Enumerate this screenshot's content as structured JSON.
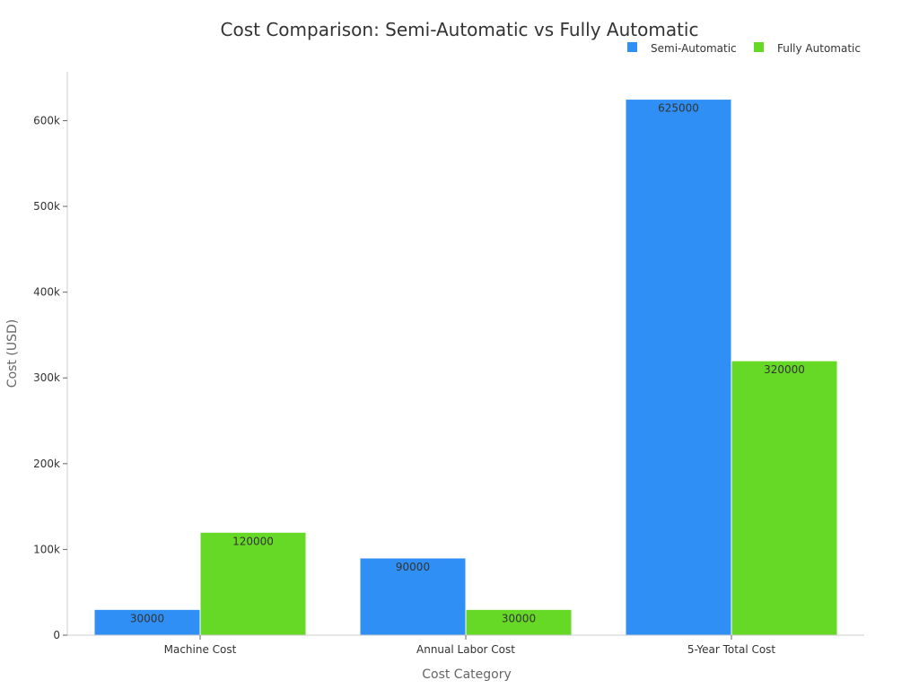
{
  "chart_data": {
    "type": "bar",
    "title": "Cost Comparison: Semi-Automatic vs Fully Automatic",
    "xlabel": "Cost Category",
    "ylabel": "Cost (USD)",
    "categories": [
      "Machine Cost",
      "Annual Labor Cost",
      "5-Year Total Cost"
    ],
    "series": [
      {
        "name": "Semi-Automatic",
        "values": [
          30000,
          90000,
          625000
        ],
        "color": "#2f8ff5"
      },
      {
        "name": "Fully Automatic",
        "values": [
          120000,
          30000,
          320000
        ],
        "color": "#66d926"
      }
    ],
    "ylim": [
      0,
      657000
    ],
    "yticks": [
      {
        "value": 0,
        "label": "0"
      },
      {
        "value": 100000,
        "label": "100k"
      },
      {
        "value": 200000,
        "label": "200k"
      },
      {
        "value": 300000,
        "label": "300k"
      },
      {
        "value": 400000,
        "label": "400k"
      },
      {
        "value": 500000,
        "label": "500k"
      },
      {
        "value": 600000,
        "label": "600k"
      }
    ],
    "grid": false,
    "legend_position": "top-right"
  }
}
